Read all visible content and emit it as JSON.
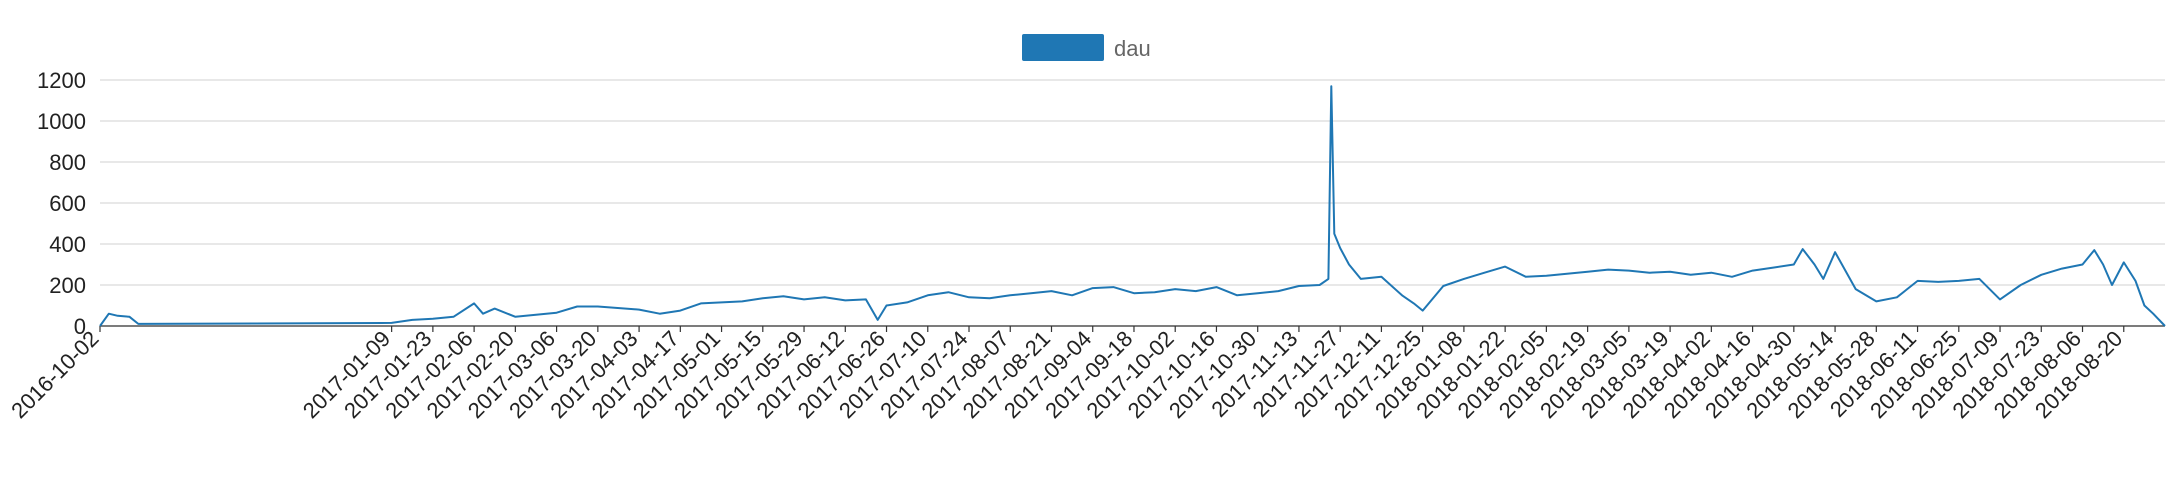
{
  "chart_data": {
    "type": "line",
    "legend": {
      "position": "top-center",
      "entries": [
        {
          "name": "dau",
          "color": "#1f77b4"
        }
      ]
    },
    "grid": true,
    "ylim": [
      0,
      1200
    ],
    "yticks": [
      "0",
      "200",
      "400",
      "600",
      "800",
      "1000",
      "1200"
    ],
    "xlim": [
      "2016-10-02",
      "2018-09-03"
    ],
    "xticks": [
      "2016-10-02",
      "2017-01-09",
      "2017-01-23",
      "2017-02-06",
      "2017-02-20",
      "2017-03-06",
      "2017-03-20",
      "2017-04-03",
      "2017-04-17",
      "2017-05-01",
      "2017-05-15",
      "2017-05-29",
      "2017-06-12",
      "2017-06-26",
      "2017-07-10",
      "2017-07-24",
      "2017-08-07",
      "2017-08-21",
      "2017-09-04",
      "2017-09-18",
      "2017-10-02",
      "2017-10-16",
      "2017-10-30",
      "2017-11-13",
      "2017-11-27",
      "2017-12-11",
      "2017-12-25",
      "2018-01-08",
      "2018-01-22",
      "2018-02-05",
      "2018-02-19",
      "2018-03-05",
      "2018-03-19",
      "2018-04-02",
      "2018-04-16",
      "2018-04-30",
      "2018-05-14",
      "2018-05-28",
      "2018-06-11",
      "2018-06-25",
      "2018-07-09",
      "2018-07-23",
      "2018-08-06",
      "2018-08-20"
    ],
    "series": [
      {
        "name": "dau",
        "color": "#1f77b4",
        "x": [
          "2016-10-02",
          "2016-10-05",
          "2016-10-08",
          "2016-10-12",
          "2016-10-15",
          "2017-01-09",
          "2017-01-16",
          "2017-01-23",
          "2017-01-30",
          "2017-02-06",
          "2017-02-09",
          "2017-02-13",
          "2017-02-20",
          "2017-03-06",
          "2017-03-13",
          "2017-03-20",
          "2017-04-03",
          "2017-04-10",
          "2017-04-17",
          "2017-04-24",
          "2017-05-01",
          "2017-05-08",
          "2017-05-15",
          "2017-05-22",
          "2017-05-29",
          "2017-06-05",
          "2017-06-12",
          "2017-06-19",
          "2017-06-23",
          "2017-06-26",
          "2017-07-03",
          "2017-07-10",
          "2017-07-17",
          "2017-07-24",
          "2017-07-31",
          "2017-08-07",
          "2017-08-14",
          "2017-08-21",
          "2017-08-28",
          "2017-09-04",
          "2017-09-11",
          "2017-09-18",
          "2017-09-25",
          "2017-10-02",
          "2017-10-09",
          "2017-10-16",
          "2017-10-23",
          "2017-10-30",
          "2017-11-06",
          "2017-11-13",
          "2017-11-20",
          "2017-11-23",
          "2017-11-24",
          "2017-11-25",
          "2017-11-27",
          "2017-11-30",
          "2017-12-04",
          "2017-12-11",
          "2017-12-18",
          "2017-12-22",
          "2017-12-25",
          "2018-01-01",
          "2018-01-08",
          "2018-01-15",
          "2018-01-22",
          "2018-01-29",
          "2018-02-05",
          "2018-02-12",
          "2018-02-19",
          "2018-02-26",
          "2018-03-05",
          "2018-03-12",
          "2018-03-19",
          "2018-03-26",
          "2018-04-02",
          "2018-04-09",
          "2018-04-16",
          "2018-04-23",
          "2018-04-30",
          "2018-05-03",
          "2018-05-07",
          "2018-05-10",
          "2018-05-14",
          "2018-05-21",
          "2018-05-28",
          "2018-06-04",
          "2018-06-11",
          "2018-06-18",
          "2018-06-25",
          "2018-07-02",
          "2018-07-09",
          "2018-07-16",
          "2018-07-23",
          "2018-07-30",
          "2018-08-06",
          "2018-08-10",
          "2018-08-13",
          "2018-08-16",
          "2018-08-20",
          "2018-08-24",
          "2018-08-27",
          "2018-08-30",
          "2018-09-03"
        ],
        "y": [
          0,
          60,
          50,
          45,
          10,
          15,
          30,
          35,
          45,
          110,
          60,
          85,
          45,
          65,
          95,
          95,
          80,
          60,
          75,
          110,
          115,
          120,
          135,
          145,
          130,
          140,
          125,
          130,
          30,
          100,
          115,
          150,
          165,
          140,
          135,
          150,
          160,
          170,
          150,
          185,
          190,
          160,
          165,
          180,
          170,
          190,
          150,
          160,
          170,
          195,
          200,
          230,
          1170,
          450,
          380,
          300,
          230,
          240,
          150,
          110,
          75,
          195,
          230,
          260,
          290,
          240,
          245,
          255,
          265,
          275,
          270,
          260,
          265,
          250,
          260,
          240,
          270,
          285,
          300,
          375,
          300,
          230,
          360,
          180,
          120,
          140,
          220,
          215,
          220,
          230,
          130,
          200,
          250,
          280,
          300,
          370,
          300,
          200,
          310,
          220,
          100,
          60,
          0
        ]
      }
    ]
  }
}
